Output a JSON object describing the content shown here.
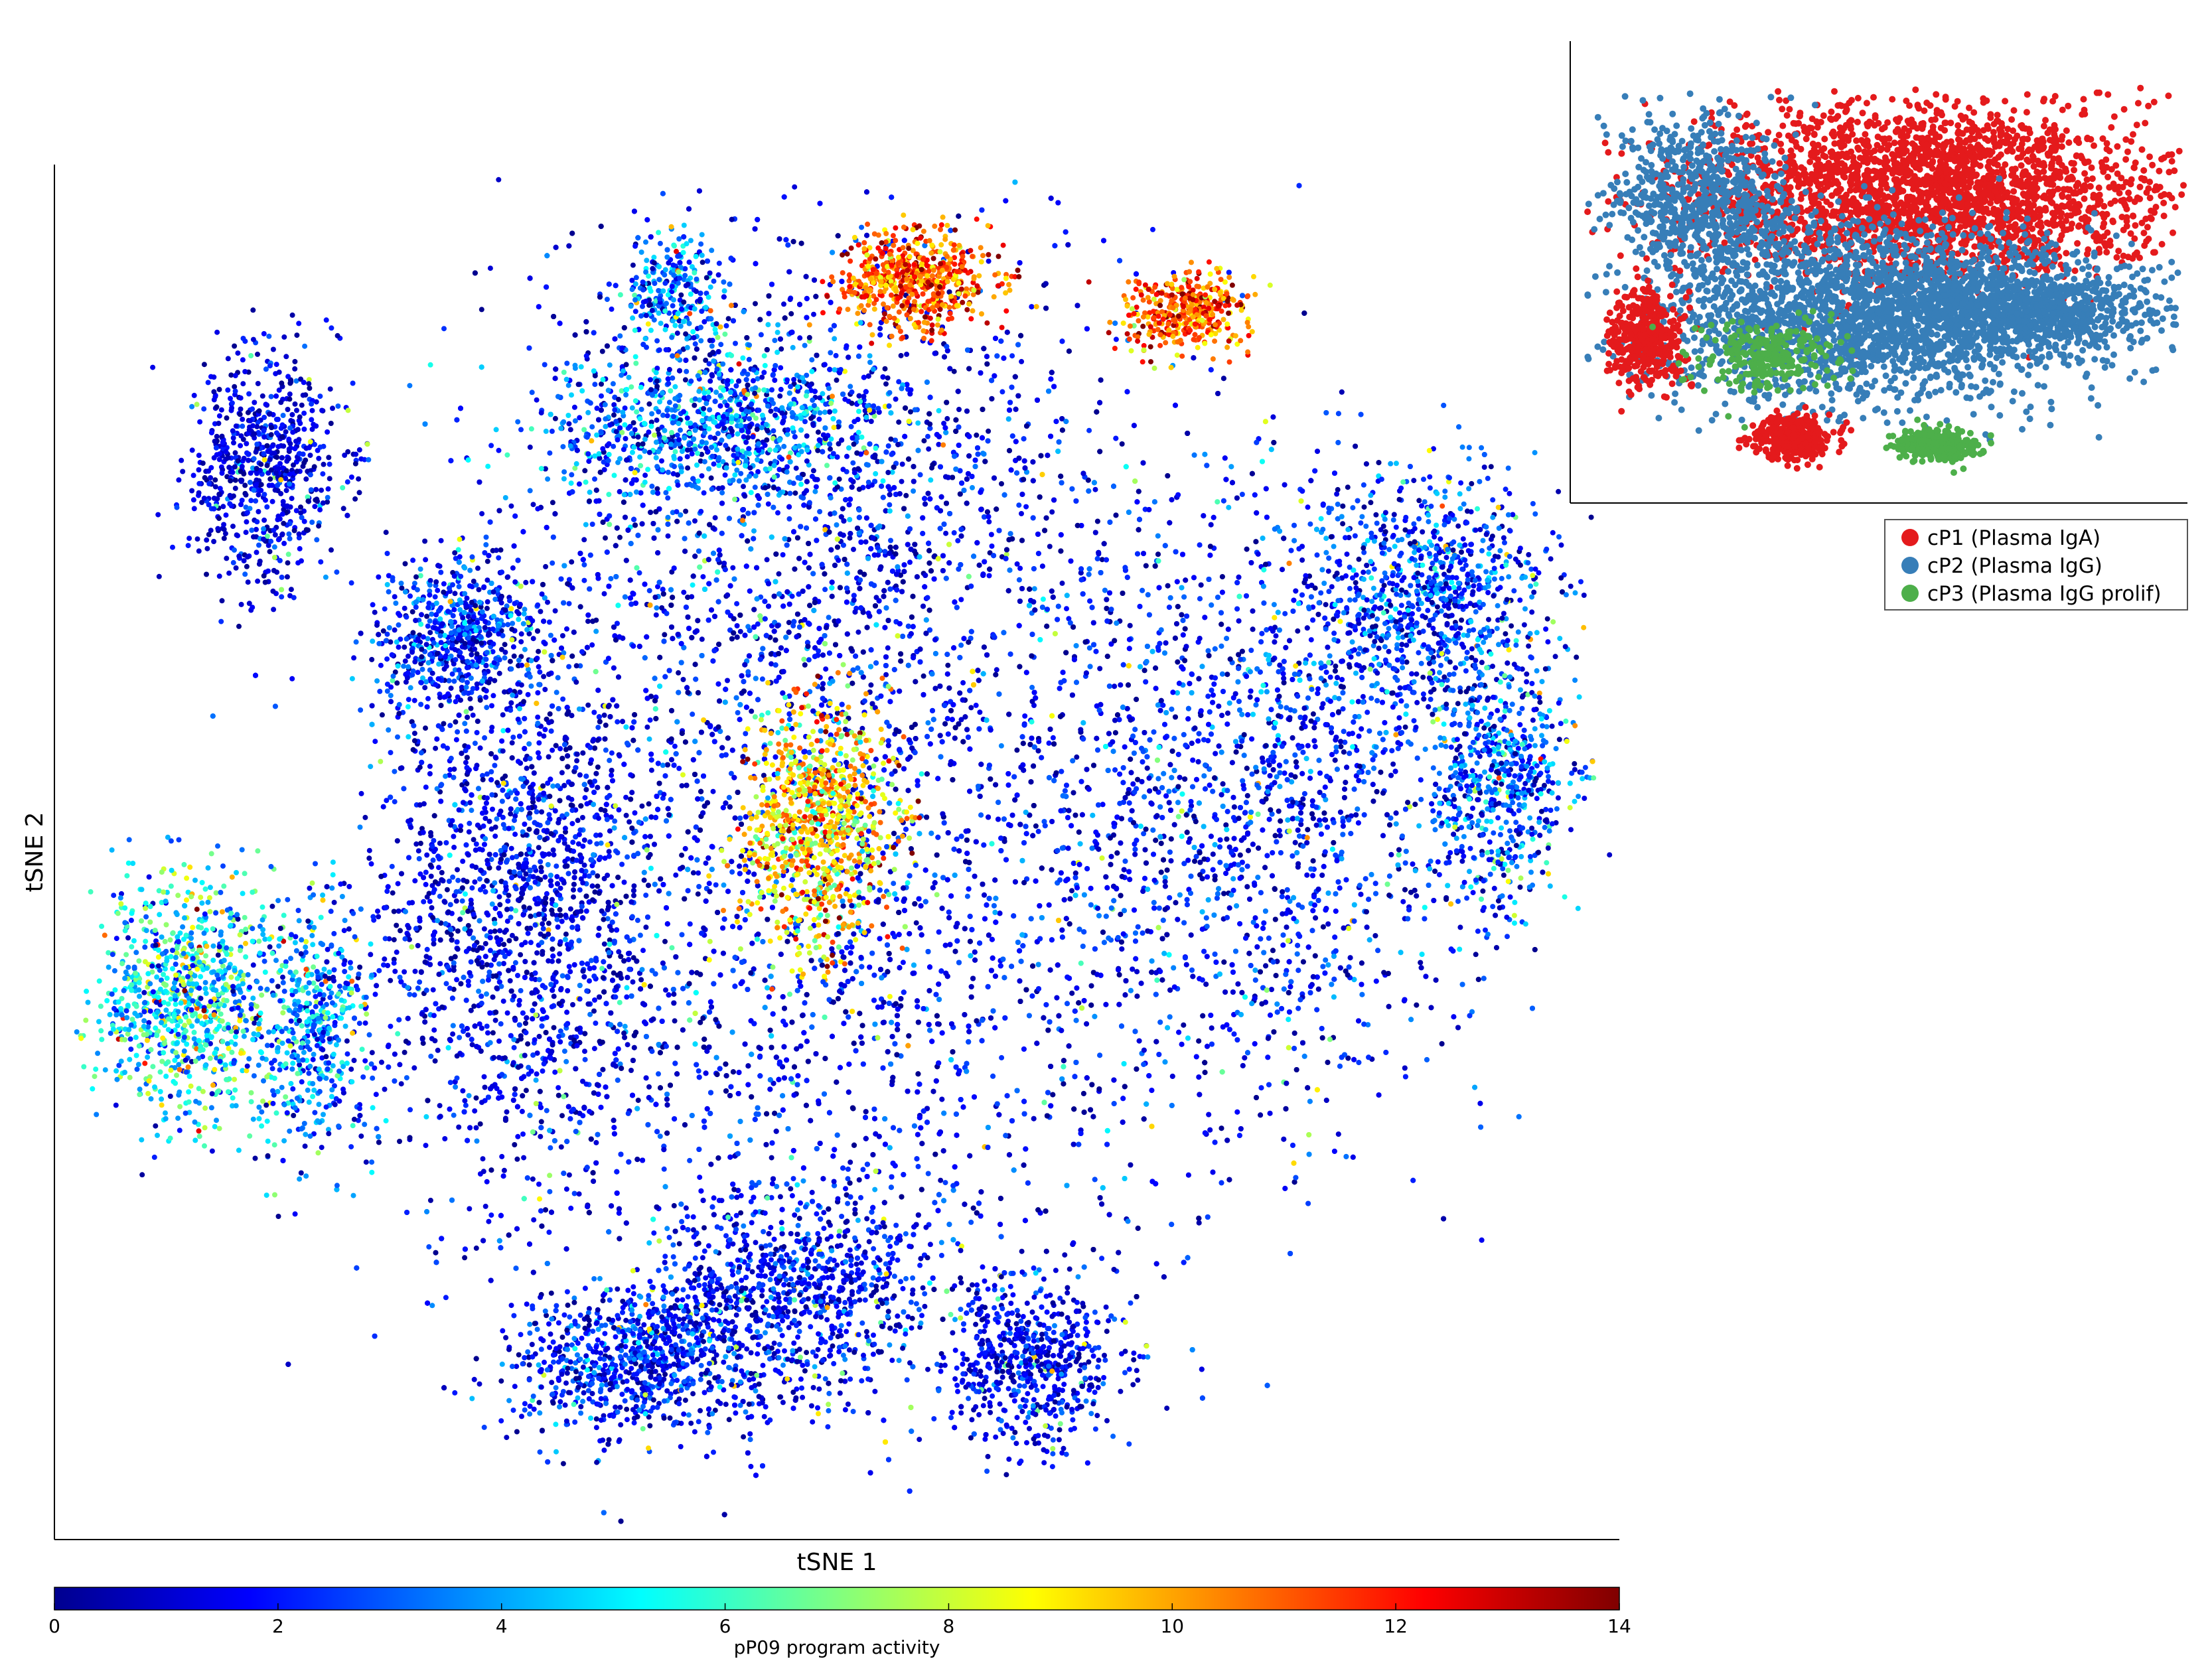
{
  "chart_data": [
    {
      "type": "scatter",
      "name": "main-tsne",
      "xlabel": "tSNE 1",
      "ylabel": "tSNE 2",
      "x_ticks_shown": false,
      "y_ticks_shown": false,
      "grid": false,
      "color_encoding": "pP09 program activity",
      "colormap": "jet",
      "colorbar": {
        "label": "pP09 program activity",
        "range": [
          0,
          14
        ],
        "ticks": [
          0,
          2,
          4,
          6,
          8,
          10,
          12,
          14
        ],
        "orientation": "horizontal",
        "placement": "bottom",
        "colors": [
          "#00008f",
          "#0000ff",
          "#0080ff",
          "#00ffff",
          "#80ff80",
          "#ffff00",
          "#ff8000",
          "#ff0000",
          "#800000"
        ]
      },
      "approx_point_count": 30000,
      "regions": [
        {
          "region": "upper-center cluster",
          "activity_level": "high",
          "approx_value": 11
        },
        {
          "region": "upper-right cluster",
          "activity_level": "high",
          "approx_value": 11
        },
        {
          "region": "center cluster",
          "activity_level": "medium-high",
          "approx_value": 9
        },
        {
          "region": "left island",
          "activity_level": "mixed",
          "approx_value": 5
        },
        {
          "region": "bulk of embedding",
          "activity_level": "low",
          "approx_value": 1.5
        }
      ]
    },
    {
      "type": "scatter",
      "name": "inset-tsne-clusters",
      "grid": false,
      "legend_placement": "below inset",
      "series": [
        {
          "name": "cP1 (Plasma IgA)",
          "color": "#e41a1c",
          "region": "upper-right and left island"
        },
        {
          "name": "cP2 (Plasma IgG)",
          "color": "#377eb8",
          "region": "center and left"
        },
        {
          "name": "cP3 (Plasma IgG prolif)",
          "color": "#4daf4a",
          "region": "bottom small cluster"
        }
      ]
    }
  ]
}
